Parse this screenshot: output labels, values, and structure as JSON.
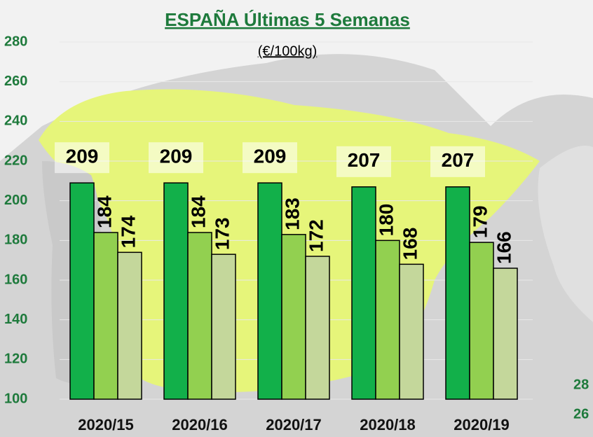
{
  "chart_data": {
    "type": "bar",
    "title": "ESPAÑA Últimas 5 Semanas",
    "subtitle": "(€/100kg)",
    "categories": [
      "2020/15",
      "2020/16",
      "2020/17",
      "2020/18",
      "2020/19"
    ],
    "series": [
      {
        "color": "#12b04a",
        "values": [
          209,
          209,
          209,
          207,
          207
        ]
      },
      {
        "color": "#92d050",
        "values": [
          184,
          184,
          183,
          180,
          179
        ]
      },
      {
        "color": "#c4d79b",
        "values": [
          174,
          173,
          172,
          168,
          166
        ]
      }
    ],
    "ylim": [
      100,
      280
    ],
    "yticks": [
      100,
      120,
      140,
      160,
      180,
      200,
      220,
      240,
      260,
      280
    ],
    "grid": true,
    "fragment_labels": [
      "28",
      "26"
    ]
  }
}
